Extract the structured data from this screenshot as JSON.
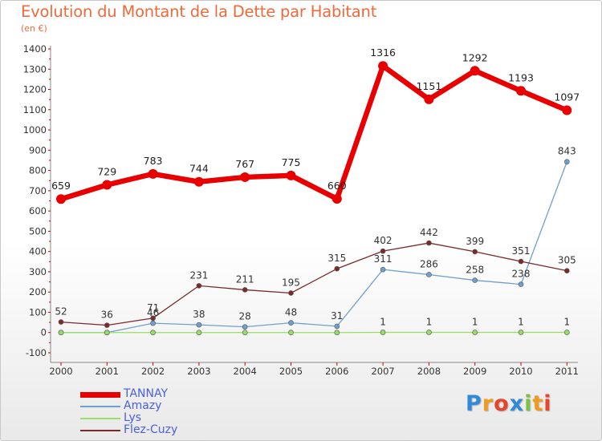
{
  "header": {
    "title": "Evolution du Montant de la Dette par Habitant",
    "unit": "(en €)"
  },
  "brand": {
    "letters": [
      "P",
      "r",
      "o",
      "x",
      "i",
      "t",
      "i"
    ],
    "colors": [
      "#2f8ad8",
      "#f29a1e",
      "#e8452a",
      "#2f8ad8",
      "#7cc242",
      "#f29a1e",
      "#e8452a"
    ]
  },
  "chart_data": {
    "type": "line",
    "categories": [
      "2000",
      "2001",
      "2002",
      "2003",
      "2004",
      "2005",
      "2006",
      "2007",
      "2008",
      "2009",
      "2010",
      "2011"
    ],
    "yticks": [
      "-100",
      "0",
      "100",
      "200",
      "300",
      "400",
      "500",
      "600",
      "700",
      "800",
      "900",
      "1000",
      "1100",
      "1200",
      "1300",
      "1400"
    ],
    "ylim": [
      -100,
      1400
    ],
    "grid": false,
    "legend": "bottom-left",
    "series": [
      {
        "name": "TANNAY",
        "color": "#e80000",
        "values": [
          659,
          729,
          783,
          744,
          767,
          775,
          660,
          1316,
          1151,
          1292,
          1193,
          1097
        ],
        "labels": [
          "659",
          "729",
          "783",
          "744",
          "767",
          "775",
          "660",
          "1316",
          "1151",
          "1292",
          "1193",
          "1097"
        ]
      },
      {
        "name": "Amazy",
        "color": "#6fa0cf",
        "values": [
          0,
          0,
          46,
          38,
          28,
          48,
          31,
          311,
          286,
          258,
          238,
          843
        ],
        "labels": [
          "",
          "",
          "46",
          "38",
          "28",
          "48",
          "31",
          "311",
          "286",
          "258",
          "238",
          "843"
        ]
      },
      {
        "name": "Lys",
        "color": "#99dd66",
        "values": [
          0,
          0,
          0,
          0,
          0,
          0,
          0,
          1,
          1,
          1,
          1,
          1
        ],
        "labels": [
          "",
          "",
          "",
          "",
          "",
          "",
          "",
          "1",
          "1",
          "1",
          "1",
          "1"
        ]
      },
      {
        "name": "Flez-Cuzy",
        "color": "#7a2a2a",
        "values": [
          52,
          36,
          71,
          231,
          211,
          195,
          315,
          402,
          442,
          399,
          351,
          305
        ],
        "labels": [
          "52",
          "36",
          "71",
          "231",
          "211",
          "195",
          "315",
          "402",
          "442",
          "399",
          "351",
          "305"
        ]
      }
    ]
  }
}
